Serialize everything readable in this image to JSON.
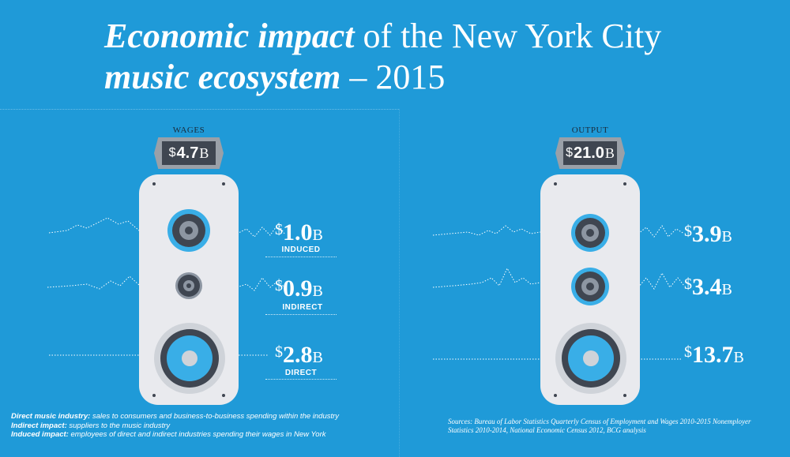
{
  "title": {
    "line1_em": "Economic impact",
    "line1_rest": " of the New York City",
    "line2_em": "music ecosystem",
    "line2_rest": " – 2015"
  },
  "chart_data": [
    {
      "type": "infographic",
      "title": "WAGES",
      "total": {
        "currency": "$",
        "value": 4.7,
        "value_text": "4.7",
        "unit": "B"
      },
      "items": [
        {
          "label": "INDUCED",
          "currency": "$",
          "value": 1.0,
          "value_text": "1.0",
          "unit": "B"
        },
        {
          "label": "INDIRECT",
          "currency": "$",
          "value": 0.9,
          "value_text": "0.9",
          "unit": "B"
        },
        {
          "label": "DIRECT",
          "currency": "$",
          "value": 2.8,
          "value_text": "2.8",
          "unit": "B"
        }
      ]
    },
    {
      "type": "infographic",
      "title": "OUTPUT",
      "total": {
        "currency": "$",
        "value": 21.0,
        "value_text": "21.0",
        "unit": "B"
      },
      "items": [
        {
          "currency": "$",
          "value": 3.9,
          "value_text": "3.9",
          "unit": "B"
        },
        {
          "currency": "$",
          "value": 3.4,
          "value_text": "3.4",
          "unit": "B"
        },
        {
          "currency": "$",
          "value": 13.7,
          "value_text": "13.7",
          "unit": "B"
        }
      ]
    }
  ],
  "notes": [
    {
      "term": "Direct music industry:",
      "text": " sales to consumers and business-to-business spending within the industry"
    },
    {
      "term": "Indirect impact:",
      "text": " suppliers to the music industry"
    },
    {
      "term": "Induced impact:",
      "text": " employees of direct and indirect industries spending their wages in New York"
    }
  ],
  "sources": "Sources: Bureau of Labor Statistics Quarterly Census of Employment and Wages 2010-2015 Nonemployer Statistics 2010-2014, National Economic Census 2012, BCG analysis",
  "colors": {
    "background": "#1f9ad8",
    "case": "#e9eaee",
    "dark": "#3f4651",
    "ring_gray": "#8d96a2",
    "accent_blue": "#39aee7",
    "plug": "#9aa0a8"
  }
}
